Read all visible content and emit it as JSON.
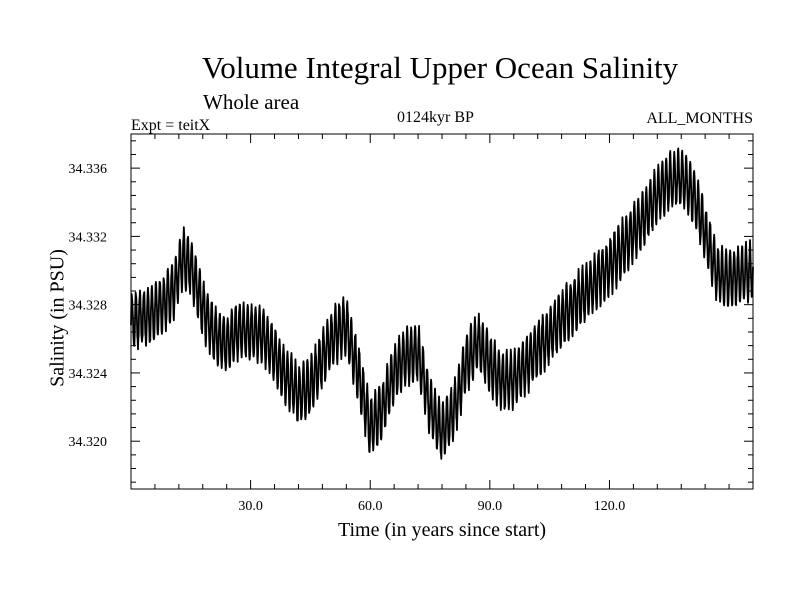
{
  "header": {
    "title": "Volume Integral Upper Ocean Salinity",
    "subtitle": "Whole area",
    "experiment": "Expt = teitX",
    "period": "0124kyr BP",
    "months": "ALL_MONTHS"
  },
  "chart_data": {
    "type": "line",
    "title": "Volume Integral Upper Ocean Salinity",
    "xlabel": "Time (in years since start)",
    "ylabel": "Salinity (in PSU)",
    "xlim": [
      0,
      156
    ],
    "ylim": [
      34.3172,
      34.338
    ],
    "xticks": [
      30.0,
      60.0,
      90.0,
      120.0
    ],
    "xtick_labels": [
      "30.0",
      "60.0",
      "90.0",
      "120.0"
    ],
    "yticks": [
      34.32,
      34.324,
      34.328,
      34.332,
      34.336
    ],
    "ytick_labels": [
      "34.320",
      "34.324",
      "34.328",
      "34.332",
      "34.336"
    ],
    "grid": false,
    "series": [
      {
        "name": "salinity",
        "seasonal_amplitude": 0.0016,
        "trend_x": [
          0,
          4,
          8,
          11,
          13,
          15,
          18,
          21,
          24,
          27,
          30,
          33,
          36,
          39,
          42,
          45,
          48,
          51,
          54,
          57,
          60,
          63,
          66,
          69,
          72,
          75,
          78,
          81,
          84,
          87,
          90,
          93,
          96,
          99,
          102,
          105,
          108,
          111,
          114,
          117,
          120,
          123,
          126,
          129,
          132,
          135,
          138,
          141,
          144,
          147,
          150,
          153,
          156
        ],
        "trend_y": [
          34.327,
          34.3273,
          34.328,
          34.329,
          34.3308,
          34.3302,
          34.3278,
          34.3262,
          34.3257,
          34.3265,
          34.3264,
          34.3263,
          34.325,
          34.3238,
          34.3227,
          34.3232,
          34.3248,
          34.3262,
          34.3268,
          34.324,
          34.3208,
          34.3218,
          34.324,
          34.325,
          34.3252,
          34.322,
          34.3205,
          34.3218,
          34.3245,
          34.3258,
          34.3245,
          34.3235,
          34.3236,
          34.3244,
          34.3254,
          34.3262,
          34.3272,
          34.328,
          34.3287,
          34.3295,
          34.3302,
          34.3312,
          34.3322,
          34.3332,
          34.3345,
          34.3352,
          34.3355,
          34.3345,
          34.3322,
          34.3298,
          34.3294,
          34.3298,
          34.33
        ]
      }
    ]
  }
}
